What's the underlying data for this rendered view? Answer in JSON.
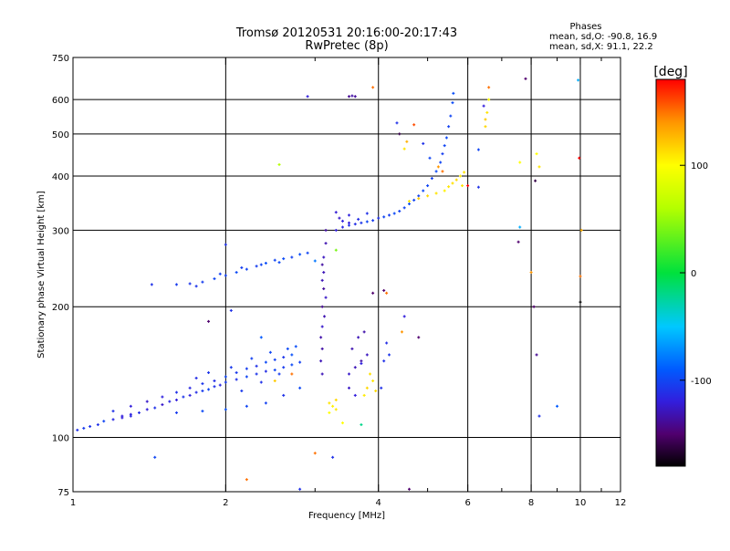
{
  "header": {
    "title": "Tromsø 20120531 20:16:00-20:17:43",
    "subtitle": "RwPretec (8p)",
    "phases_label": "Phases",
    "phases_o": "mean, sd,O: -90.8, 16.9",
    "phases_x": "mean, sd,X:  91.1, 22.2"
  },
  "colorbar": {
    "unit_label": "[deg]",
    "range": [
      -180,
      180
    ],
    "ticks": [
      100,
      0,
      -100
    ],
    "tick_labels": [
      "100",
      "0",
      "-100"
    ]
  },
  "chart_data": {
    "type": "scatter",
    "title": "Tromsø 20120531 20:16:00-20:17:43",
    "subtitle": "RwPretec (8p)",
    "xlabel": "Frequency [MHz]",
    "ylabel": "Stationary phase Virtual Height [km]",
    "xscale": "log",
    "yscale": "log",
    "xlim": [
      1,
      12
    ],
    "ylim": [
      75,
      750
    ],
    "x_ticks": [
      1,
      2,
      4,
      6,
      8,
      10,
      12
    ],
    "x_tick_labels": [
      "1",
      "2",
      "4",
      "6",
      "8",
      "10",
      "12"
    ],
    "x_minor_ticks": [
      3,
      5,
      7,
      9,
      11
    ],
    "y_ticks": [
      75,
      100,
      200,
      300,
      400,
      500,
      600,
      750
    ],
    "y_tick_labels": [
      "75",
      "100",
      "200",
      "300",
      "400",
      "500",
      "600",
      "750"
    ],
    "grid": true,
    "color_dimension": "phase [deg]",
    "series": [
      {
        "points": [
          [
            1.02,
            104,
            -110
          ],
          [
            1.05,
            105,
            -105
          ],
          [
            1.08,
            106,
            -108
          ],
          [
            1.12,
            107,
            -110
          ],
          [
            1.15,
            109,
            -100
          ],
          [
            1.2,
            110,
            -115
          ],
          [
            1.25,
            112,
            -120
          ],
          [
            1.3,
            113,
            -118
          ],
          [
            1.35,
            114,
            -112
          ],
          [
            1.4,
            116,
            -120
          ],
          [
            1.45,
            117,
            -110
          ],
          [
            1.5,
            119,
            -125
          ],
          [
            1.55,
            121,
            -115
          ],
          [
            1.6,
            122,
            -120
          ],
          [
            1.65,
            124,
            -108
          ],
          [
            1.7,
            125,
            -118
          ],
          [
            1.75,
            127,
            -112
          ],
          [
            1.8,
            128,
            -105
          ],
          [
            1.85,
            129,
            -100
          ],
          [
            1.9,
            131,
            -110
          ],
          [
            1.95,
            132,
            -115
          ],
          [
            2.0,
            134,
            -105
          ],
          [
            2.1,
            136,
            -110
          ],
          [
            2.2,
            138,
            -100
          ],
          [
            2.3,
            140,
            -108
          ],
          [
            2.4,
            142,
            -112
          ],
          [
            2.5,
            143,
            -100
          ],
          [
            2.6,
            145,
            -105
          ],
          [
            2.7,
            147,
            -98
          ],
          [
            2.8,
            149,
            -102
          ],
          [
            1.3,
            118,
            -120
          ],
          [
            1.4,
            121,
            -125
          ],
          [
            1.5,
            124,
            -118
          ],
          [
            1.6,
            127,
            -110
          ],
          [
            1.7,
            130,
            -115
          ],
          [
            1.8,
            133,
            -108
          ],
          [
            1.9,
            135,
            -112
          ],
          [
            2.0,
            138,
            -100
          ],
          [
            2.1,
            141,
            -106
          ],
          [
            2.2,
            144,
            -104
          ],
          [
            2.3,
            146,
            -110
          ],
          [
            2.4,
            149,
            -98
          ],
          [
            2.5,
            151,
            -102
          ],
          [
            2.6,
            153,
            -108
          ],
          [
            2.7,
            155,
            -95
          ],
          [
            1.2,
            115,
            -110
          ],
          [
            1.25,
            111,
            -120
          ],
          [
            1.3,
            112,
            -115
          ],
          [
            1.6,
            114,
            -105
          ],
          [
            1.8,
            115,
            -98
          ],
          [
            2.0,
            116,
            -95
          ],
          [
            2.2,
            118,
            -100
          ],
          [
            2.4,
            120,
            -102
          ],
          [
            2.6,
            125,
            -110
          ],
          [
            2.8,
            130,
            -98
          ],
          [
            1.75,
            137,
            -112
          ],
          [
            1.85,
            141,
            -108
          ],
          [
            2.05,
            145,
            -106
          ],
          [
            2.25,
            152,
            -102
          ],
          [
            2.45,
            157,
            -100
          ],
          [
            2.65,
            160,
            -98
          ],
          [
            2.75,
            162,
            -96
          ],
          [
            2.55,
            140,
            -104
          ],
          [
            2.35,
            134,
            -110
          ],
          [
            2.15,
            128,
            -106
          ],
          [
            1.43,
            225,
            -110
          ],
          [
            1.6,
            225,
            -105
          ],
          [
            1.7,
            226,
            -108
          ],
          [
            1.8,
            228,
            -104
          ],
          [
            1.9,
            232,
            -100
          ],
          [
            2.0,
            236,
            -102
          ],
          [
            2.1,
            240,
            -98
          ],
          [
            2.2,
            244,
            -100
          ],
          [
            2.3,
            248,
            -104
          ],
          [
            2.4,
            252,
            -96
          ],
          [
            2.5,
            256,
            -100
          ],
          [
            2.6,
            258,
            -98
          ],
          [
            2.7,
            260,
            -102
          ],
          [
            2.8,
            264,
            -95
          ],
          [
            2.9,
            266,
            -100
          ],
          [
            1.75,
            223,
            -108
          ],
          [
            1.95,
            238,
            -102
          ],
          [
            2.15,
            246,
            -104
          ],
          [
            2.35,
            250,
            -100
          ],
          [
            2.55,
            253,
            -98
          ],
          [
            3.1,
            140,
            -130
          ],
          [
            3.1,
            160,
            -135
          ],
          [
            3.1,
            180,
            -125
          ],
          [
            3.1,
            200,
            -140
          ],
          [
            3.12,
            220,
            -138
          ],
          [
            3.12,
            240,
            -130
          ],
          [
            3.12,
            260,
            -128
          ],
          [
            3.15,
            280,
            -132
          ],
          [
            3.15,
            300,
            -136
          ],
          [
            3.08,
            150,
            -130
          ],
          [
            3.08,
            170,
            -134
          ],
          [
            3.13,
            190,
            -132
          ],
          [
            3.15,
            210,
            -126
          ],
          [
            3.1,
            230,
            -130
          ],
          [
            3.1,
            250,
            -136
          ],
          [
            3.2,
            120,
            110
          ],
          [
            3.25,
            118,
            105
          ],
          [
            3.3,
            122,
            115
          ],
          [
            3.2,
            114,
            100
          ],
          [
            3.3,
            116,
            108
          ],
          [
            3.3,
            300,
            -120
          ],
          [
            3.4,
            305,
            -115
          ],
          [
            3.5,
            308,
            -110
          ],
          [
            3.6,
            310,
            -112
          ],
          [
            3.7,
            312,
            -108
          ],
          [
            3.8,
            314,
            -100
          ],
          [
            3.9,
            316,
            -105
          ],
          [
            4.0,
            320,
            -110
          ],
          [
            4.1,
            322,
            -100
          ],
          [
            4.2,
            325,
            -104
          ],
          [
            4.3,
            328,
            -98
          ],
          [
            4.4,
            332,
            -102
          ],
          [
            4.5,
            338,
            -100
          ],
          [
            4.6,
            345,
            -96
          ],
          [
            4.7,
            352,
            -100
          ],
          [
            4.8,
            360,
            -102
          ],
          [
            4.9,
            370,
            -98
          ],
          [
            5.0,
            380,
            -100
          ],
          [
            5.1,
            395,
            -102
          ],
          [
            5.2,
            410,
            -98
          ],
          [
            5.3,
            430,
            -100
          ],
          [
            5.35,
            450,
            -104
          ],
          [
            5.4,
            470,
            -100
          ],
          [
            5.45,
            490,
            -98
          ],
          [
            5.5,
            520,
            -102
          ],
          [
            5.55,
            550,
            -100
          ],
          [
            5.6,
            590,
            -98
          ],
          [
            5.62,
            620,
            -96
          ],
          [
            3.35,
            320,
            -125
          ],
          [
            3.5,
            325,
            -118
          ],
          [
            3.65,
            318,
            -112
          ],
          [
            3.8,
            328,
            -110
          ],
          [
            3.5,
            312,
            -120
          ],
          [
            3.3,
            330,
            -122
          ],
          [
            3.4,
            315,
            -118
          ],
          [
            4.6,
            350,
            110
          ],
          [
            4.8,
            355,
            120
          ],
          [
            5.0,
            360,
            115
          ],
          [
            5.2,
            365,
            110
          ],
          [
            5.4,
            370,
            105
          ],
          [
            5.5,
            378,
            110
          ],
          [
            5.6,
            385,
            112
          ],
          [
            5.7,
            392,
            115
          ],
          [
            5.8,
            400,
            108
          ],
          [
            5.9,
            408,
            110
          ],
          [
            6.5,
            520,
            115
          ],
          [
            6.55,
            560,
            110
          ],
          [
            6.6,
            600,
            100
          ],
          [
            6.5,
            540,
            120
          ],
          [
            3.5,
            140,
            -125
          ],
          [
            3.6,
            145,
            -130
          ],
          [
            3.7,
            150,
            -135
          ],
          [
            3.8,
            155,
            -128
          ],
          [
            3.55,
            160,
            -132
          ],
          [
            3.65,
            170,
            -130
          ],
          [
            3.75,
            175,
            -134
          ],
          [
            3.5,
            130,
            -126
          ],
          [
            3.6,
            125,
            -120
          ],
          [
            3.7,
            148,
            -118
          ],
          [
            3.8,
            130,
            115
          ],
          [
            3.9,
            135,
            110
          ],
          [
            3.75,
            125,
            108
          ],
          [
            3.85,
            140,
            112
          ],
          [
            3.95,
            128,
            114
          ],
          [
            4.05,
            130,
            -110
          ],
          [
            4.1,
            150,
            -110
          ],
          [
            4.15,
            165,
            -112
          ],
          [
            4.2,
            155,
            -108
          ],
          [
            2.9,
            610,
            -120
          ],
          [
            3.5,
            610,
            -140
          ],
          [
            3.55,
            612,
            -135
          ],
          [
            3.6,
            610,
            -138
          ],
          [
            3.9,
            640,
            150
          ],
          [
            4.35,
            530,
            -110
          ],
          [
            4.4,
            500,
            -160
          ],
          [
            4.55,
            480,
            130
          ],
          [
            4.5,
            462,
            110
          ],
          [
            4.7,
            525,
            160
          ],
          [
            4.9,
            475,
            -110
          ],
          [
            5.05,
            440,
            -100
          ],
          [
            5.25,
            420,
            140
          ],
          [
            5.35,
            410,
            150
          ],
          [
            5.85,
            380,
            110
          ],
          [
            6.0,
            380,
            180
          ],
          [
            6.3,
            460,
            -100
          ],
          [
            6.3,
            377,
            -110
          ],
          [
            6.45,
            580,
            -120
          ],
          [
            6.6,
            640,
            150
          ],
          [
            7.6,
            430,
            100
          ],
          [
            7.8,
            670,
            -150
          ],
          [
            8.0,
            240,
            140
          ],
          [
            8.2,
            450,
            100
          ],
          [
            8.3,
            420,
            110
          ],
          [
            8.1,
            200,
            -150
          ],
          [
            8.15,
            390,
            -160
          ],
          [
            8.2,
            155,
            -140
          ],
          [
            8.3,
            112,
            -110
          ],
          [
            9.0,
            118,
            -90
          ],
          [
            7.55,
            282,
            -150
          ],
          [
            7.6,
            305,
            -60
          ],
          [
            9.9,
            665,
            -60
          ],
          [
            9.95,
            440,
            180
          ],
          [
            10.0,
            235,
            150
          ],
          [
            10.0,
            205,
            -180
          ],
          [
            10.05,
            300,
            130
          ],
          [
            1.45,
            90,
            -100
          ],
          [
            2.2,
            80,
            150
          ],
          [
            2.8,
            76,
            -110
          ],
          [
            3.0,
            92,
            150
          ],
          [
            3.25,
            90,
            -110
          ],
          [
            3.4,
            108,
            100
          ],
          [
            3.7,
            107,
            -20
          ],
          [
            3.9,
            215,
            -150
          ],
          [
            4.1,
            218,
            -150
          ],
          [
            4.15,
            215,
            150
          ],
          [
            4.8,
            170,
            -150
          ],
          [
            4.45,
            175,
            140
          ],
          [
            4.5,
            190,
            -120
          ],
          [
            3.3,
            270,
            40
          ],
          [
            3.0,
            255,
            -80
          ],
          [
            2.5,
            135,
            120
          ],
          [
            2.7,
            140,
            150
          ],
          [
            2.55,
            425,
            60
          ],
          [
            4.6,
            76,
            -150
          ],
          [
            2.0,
            278,
            -110
          ],
          [
            1.85,
            185,
            -150
          ],
          [
            2.05,
            196,
            -110
          ],
          [
            2.35,
            170,
            -90
          ]
        ]
      }
    ]
  }
}
